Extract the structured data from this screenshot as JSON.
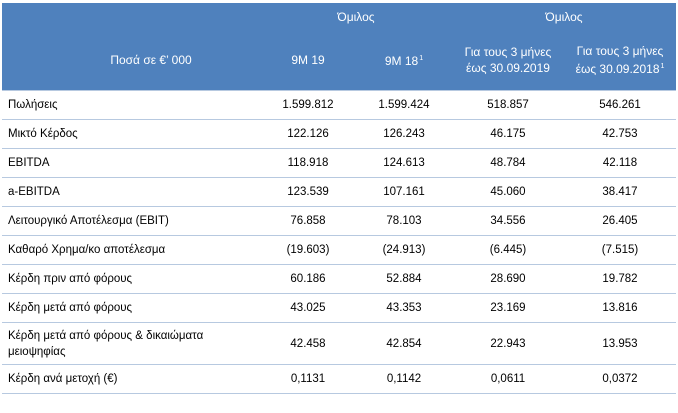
{
  "header": {
    "group_left": "Όμιλος",
    "group_right": "Όμιλος",
    "amounts_label": "Ποσά  σε €’ 000",
    "columns": [
      {
        "label": "9M 19",
        "sup": ""
      },
      {
        "label": "9M 18",
        "sup": "1"
      },
      {
        "line1": "Για τους 3 μήνες",
        "line2": "έως 30.09.2019",
        "sup": ""
      },
      {
        "line1": "Για τους 3 μήνες",
        "line2": "έως 30.09.2018",
        "sup": "1"
      }
    ]
  },
  "rows": [
    {
      "label": "Πωλήσεις",
      "values": [
        "1.599.812",
        "1.599.424",
        "518.857",
        "546.261"
      ]
    },
    {
      "label": "Μικτό Κέρδος",
      "values": [
        "122.126",
        "126.243",
        "46.175",
        "42.753"
      ]
    },
    {
      "label": "EBITDA",
      "values": [
        "118.918",
        "124.613",
        "48.784",
        "42.118"
      ]
    },
    {
      "label": "a-EBITDA",
      "values": [
        "123.539",
        "107.161",
        "45.060",
        "38.417"
      ]
    },
    {
      "label": "Λειτουργικό Αποτέλεσμα (EBIT)",
      "values": [
        "76.858",
        "78.103",
        "34.556",
        "26.405"
      ]
    },
    {
      "label": "Καθαρό Χρημα/κο αποτέλεσμα",
      "values": [
        "(19.603)",
        "(24.913)",
        "(6.445)",
        "(7.515)"
      ]
    },
    {
      "label": "Κέρδη πριν από φόρους",
      "values": [
        "60.186",
        "52.884",
        "28.690",
        "19.782"
      ]
    },
    {
      "label": "Κέρδη μετά από φόρους",
      "values": [
        "43.025",
        "43.353",
        "23.169",
        "13.816"
      ]
    },
    {
      "label": "Κέρδη μετά από φόρους & δικαιώματα μειοψηφίας",
      "values": [
        "42.458",
        "42.854",
        "22.943",
        "13.953"
      ]
    },
    {
      "label": "Κέρδη ανά μετοχή (€)",
      "values": [
        "0,1131",
        "0,1142",
        "0,0611",
        "0,0372"
      ]
    }
  ]
}
